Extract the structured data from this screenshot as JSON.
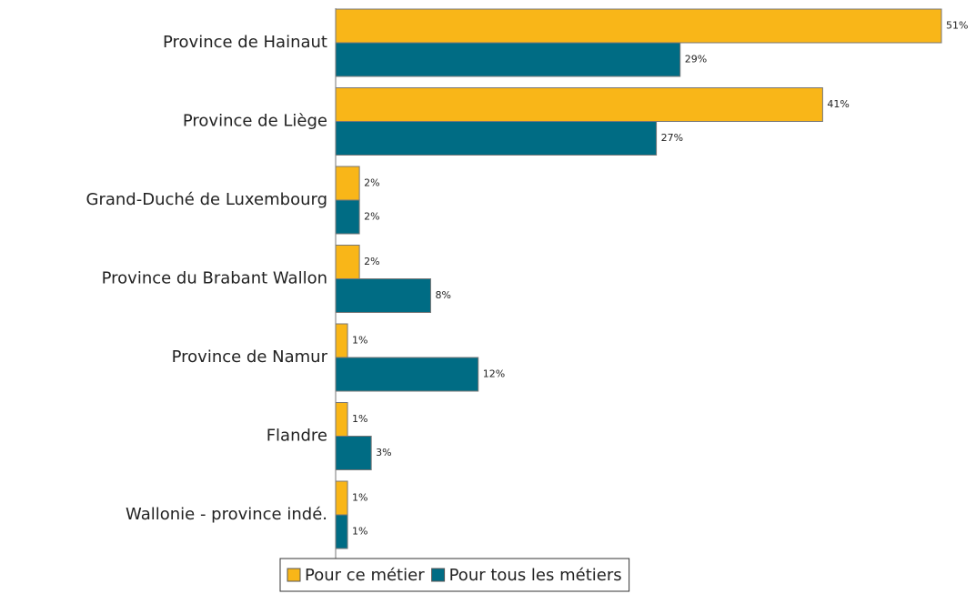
{
  "chart_data": {
    "type": "bar",
    "orientation": "horizontal",
    "categories": [
      "Province de Hainaut",
      "Province de Liège",
      "Grand-Duché de Luxembourg",
      "Province du Brabant Wallon",
      "Province de Namur",
      "Flandre",
      "Wallonie - province indé."
    ],
    "series": [
      {
        "name": "Pour ce métier",
        "color": "#f9b618",
        "values": [
          51,
          41,
          2,
          2,
          1,
          1,
          1
        ],
        "value_labels": [
          "51%",
          "41%",
          "2%",
          "2%",
          "1%",
          "1%",
          "1%"
        ]
      },
      {
        "name": "Pour tous les métiers",
        "color": "#006c84",
        "values": [
          29,
          27,
          2,
          8,
          12,
          3,
          1
        ],
        "value_labels": [
          "29%",
          "27%",
          "2%",
          "8%",
          "12%",
          "3%",
          "1%"
        ]
      }
    ],
    "xlim": [
      0,
      51
    ],
    "legend": "bottom"
  }
}
